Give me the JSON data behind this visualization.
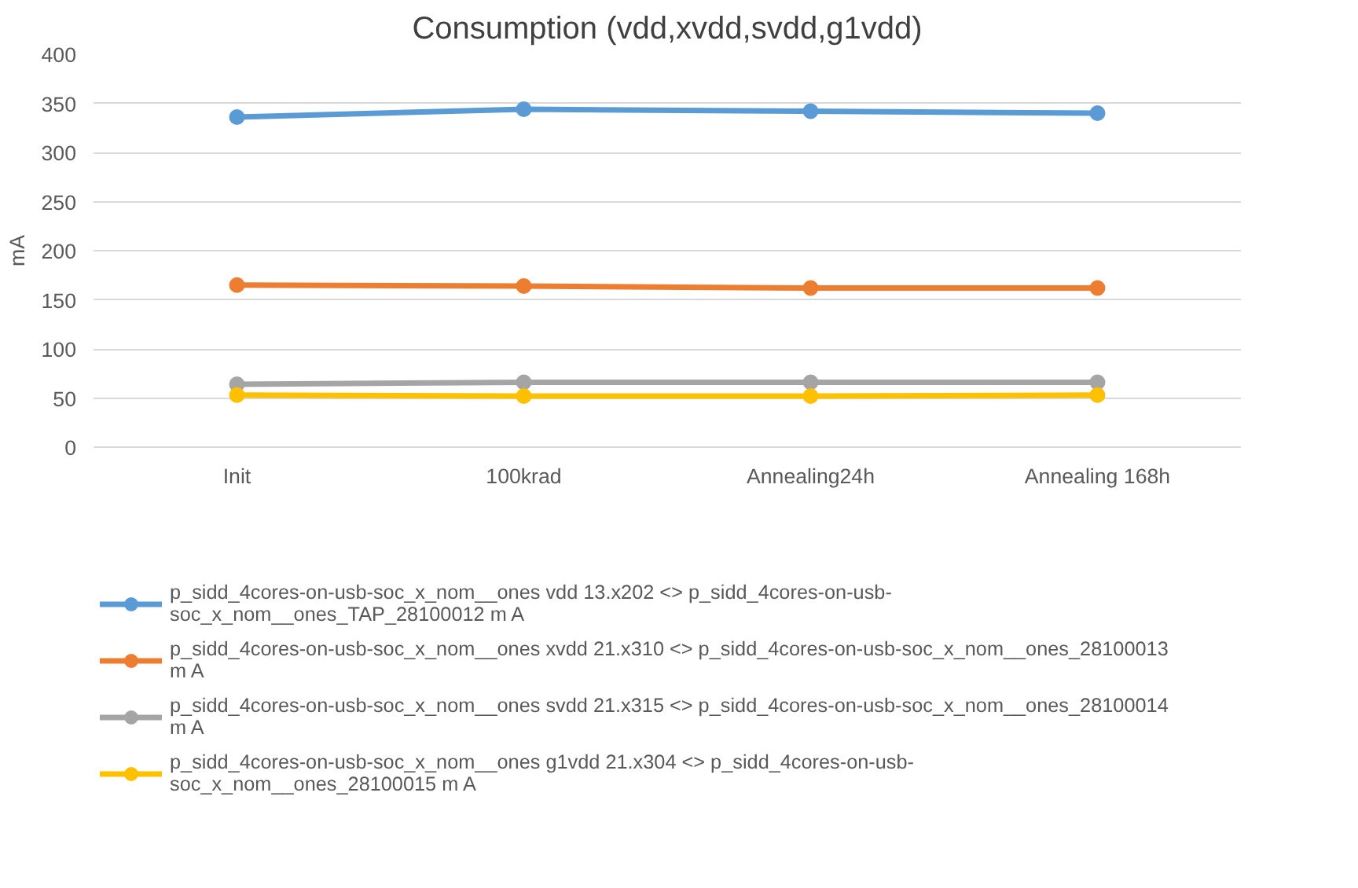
{
  "chart_data": {
    "type": "line",
    "title": "Consumption (vdd,xvdd,svdd,g1vdd)",
    "ylabel": "mA",
    "categories": [
      "Init",
      "100krad",
      "Annealing24h",
      "Annealing 168h"
    ],
    "series": [
      {
        "name": "p_sidd_4cores-on-usb-soc_x_nom__ones vdd 13.x202 <> p_sidd_4cores-on-usb-soc_x_nom__ones_TAP_28100012 m A",
        "color": "#5b9bd5",
        "values": [
          336,
          344,
          342,
          340
        ]
      },
      {
        "name": "p_sidd_4cores-on-usb-soc_x_nom__ones xvdd 21.x310 <> p_sidd_4cores-on-usb-soc_x_nom__ones_28100013 m A",
        "color": "#ed7d31",
        "values": [
          165,
          164,
          162,
          162
        ]
      },
      {
        "name": "p_sidd_4cores-on-usb-soc_x_nom__ones svdd 21.x315 <> p_sidd_4cores-on-usb-soc_x_nom__ones_28100014 m A",
        "color": "#a5a5a5",
        "values": [
          64,
          66,
          66,
          66
        ]
      },
      {
        "name": "p_sidd_4cores-on-usb-soc_x_nom__ones g1vdd 21.x304 <> p_sidd_4cores-on-usb-soc_x_nom__ones_28100015 m A",
        "color": "#ffc000",
        "values": [
          53,
          52,
          52,
          53
        ]
      }
    ],
    "ylim": [
      0,
      400
    ],
    "yticks": [
      0,
      50,
      100,
      150,
      200,
      250,
      300,
      350,
      400
    ],
    "grid": "y",
    "legend": "bottom",
    "marker": "circle",
    "line_style": "solid"
  }
}
